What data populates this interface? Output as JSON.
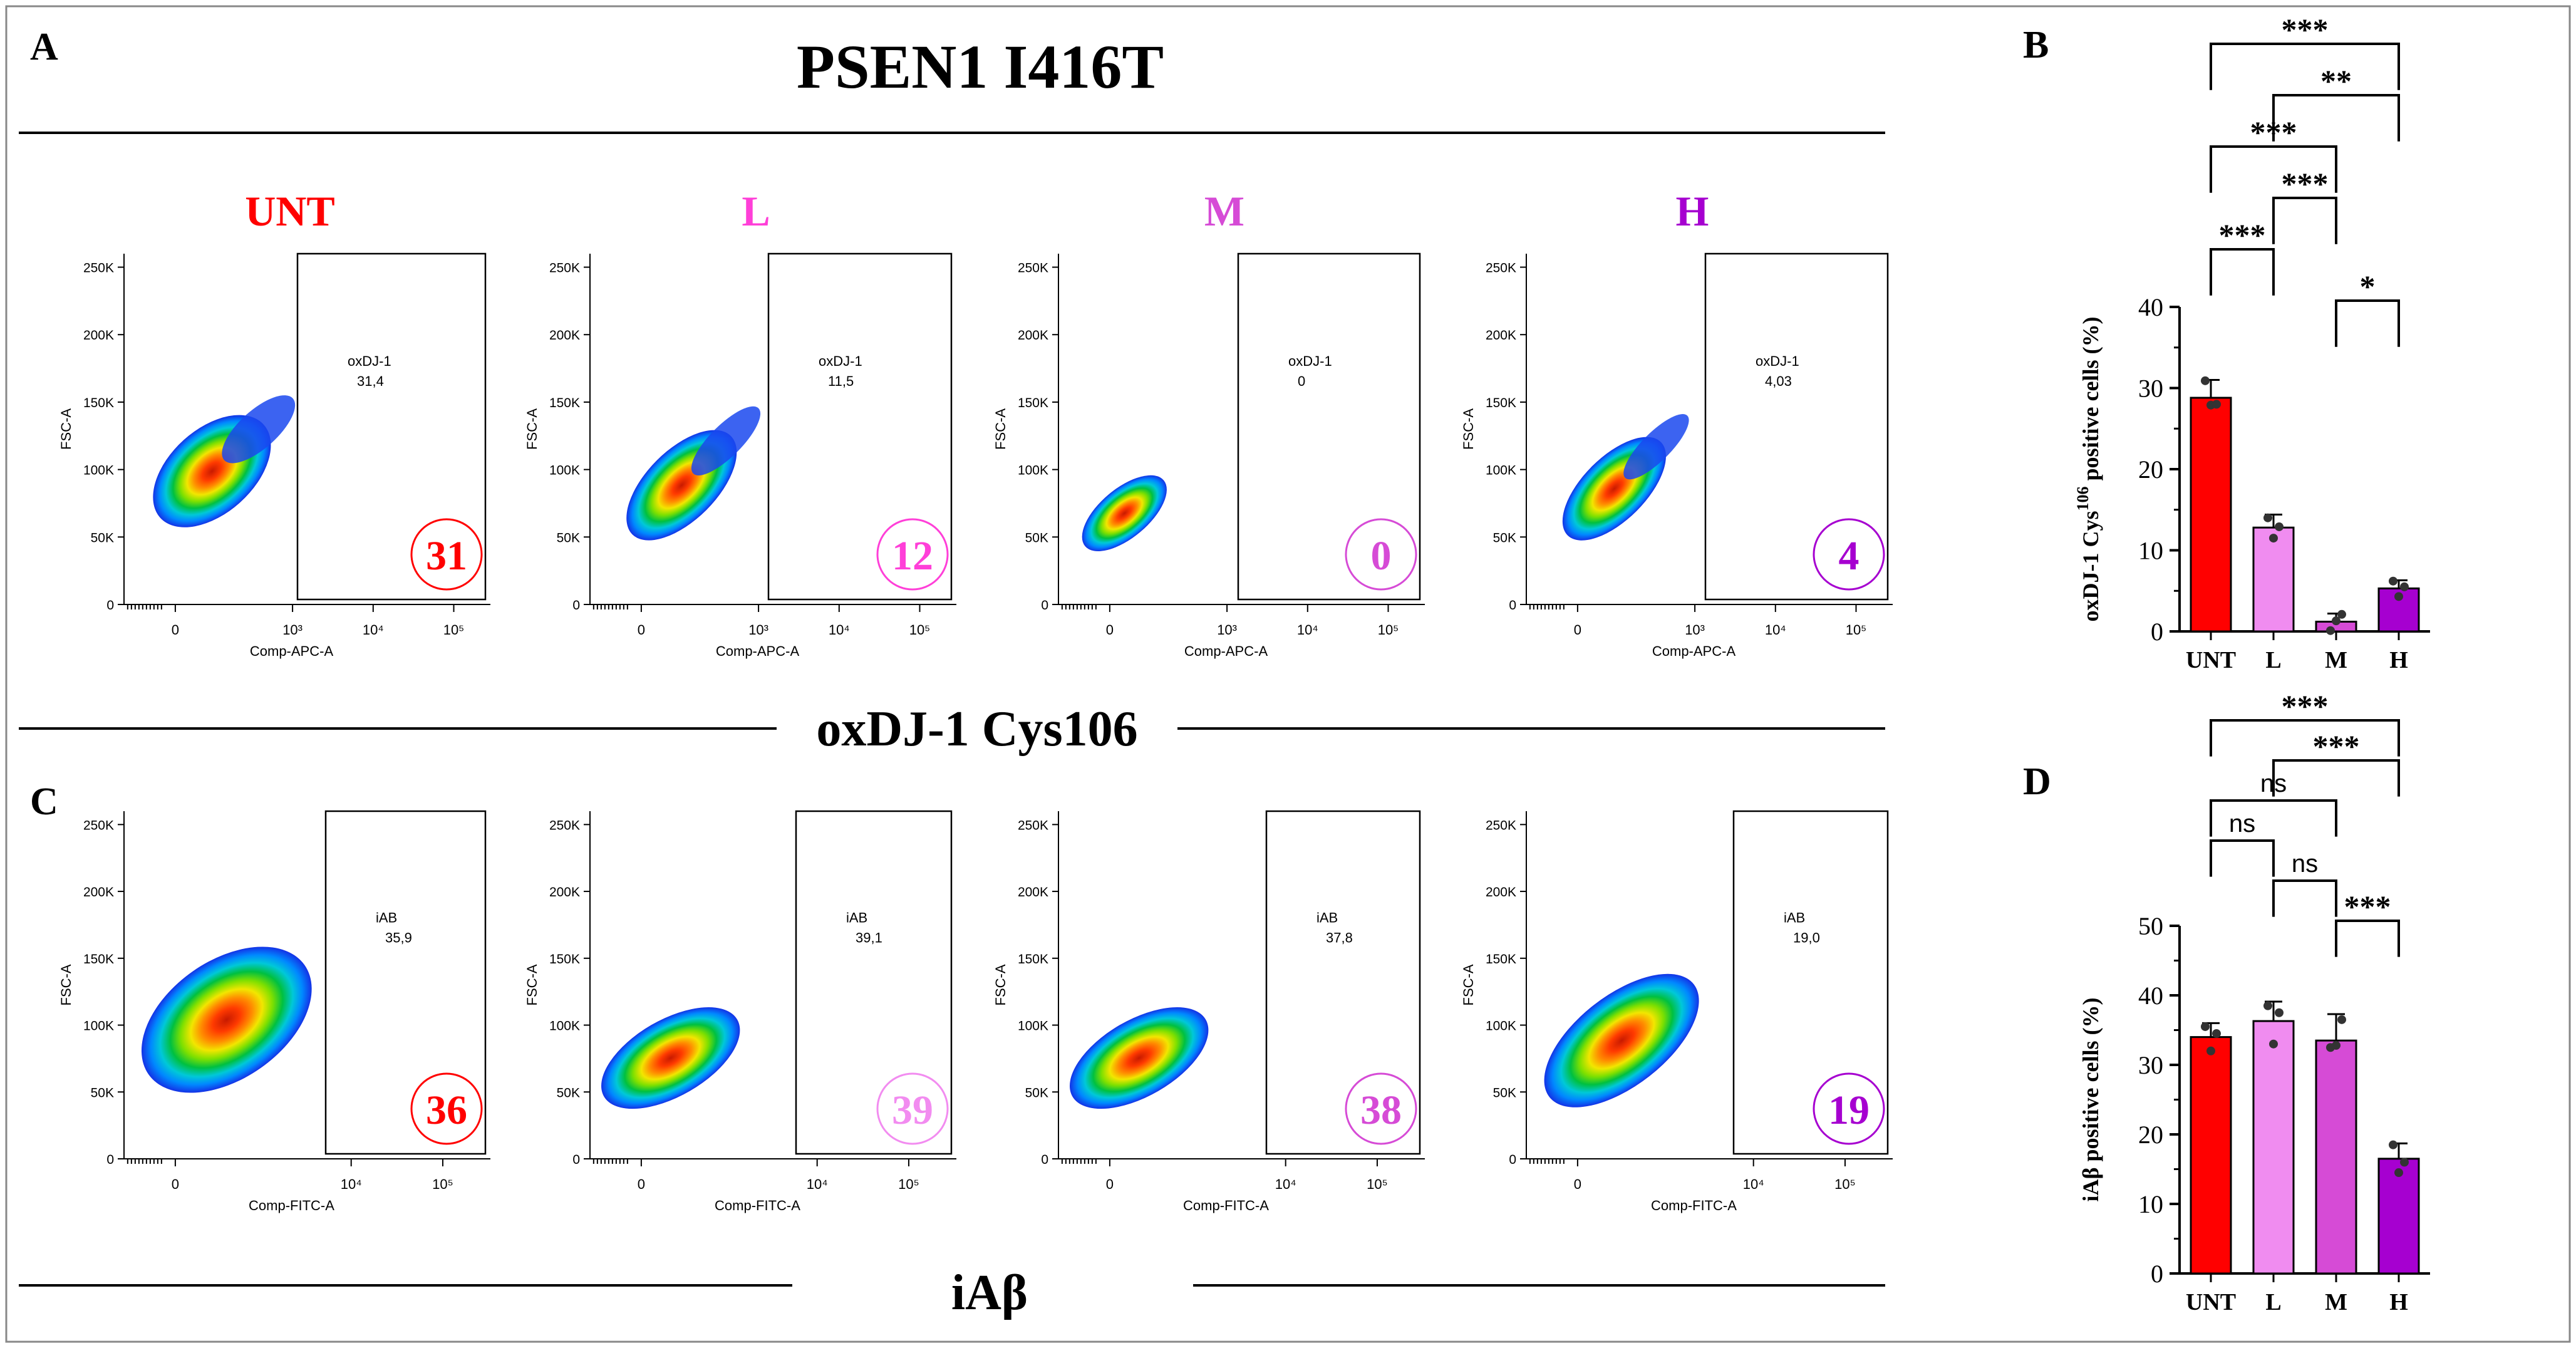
{
  "figure": {
    "title": "PSEN1 I416T",
    "panel_labels": {
      "A": "A",
      "B": "B",
      "C": "C",
      "D": "D"
    },
    "section_labels": {
      "ox": "oxDJ-1 Cys106",
      "iab": "iAβ"
    },
    "group_colors": {
      "UNT": "#ff0000",
      "L": "#ff3fd8",
      "M": "#d64bd6",
      "H": "#a600d0",
      "L_iab": "#f28cf0"
    }
  },
  "flow_common": {
    "y_axis_label": "FSC-A",
    "y_ticks": [
      "0",
      "50K",
      "100K",
      "150K",
      "200K",
      "250K"
    ],
    "x_ticks_apc": [
      "0",
      "10³",
      "10⁴",
      "10⁵"
    ],
    "x_ticks_fitc": [
      "0",
      "10⁴",
      "10⁵"
    ]
  },
  "flow_rows": [
    {
      "id": "ox",
      "x_axis_label": "Comp-APC-A",
      "gate_name": "oxDJ-1",
      "plots": [
        {
          "group": "UNT",
          "header": "UNT",
          "gate_value": "31,4",
          "badge": "31",
          "color": "#ff0000"
        },
        {
          "group": "L",
          "header": "L",
          "gate_value": "11,5",
          "badge": "12",
          "color": "#ff3fd8"
        },
        {
          "group": "M",
          "header": "M",
          "gate_value": "0",
          "badge": "0",
          "color": "#d64bd6"
        },
        {
          "group": "H",
          "header": "H",
          "gate_value": "4,03",
          "badge": "4",
          "color": "#a600d0"
        }
      ]
    },
    {
      "id": "iab",
      "x_axis_label": "Comp-FITC-A",
      "gate_name": "iAB",
      "plots": [
        {
          "group": "UNT",
          "header": "",
          "gate_value": "35,9",
          "badge": "36",
          "color": "#ff0000"
        },
        {
          "group": "L",
          "header": "",
          "gate_value": "39,1",
          "badge": "39",
          "color": "#f28cf0"
        },
        {
          "group": "M",
          "header": "",
          "gate_value": "37,8",
          "badge": "38",
          "color": "#d64bd6"
        },
        {
          "group": "H",
          "header": "",
          "gate_value": "19,0",
          "badge": "19",
          "color": "#a600d0"
        }
      ]
    }
  ],
  "chart_data": [
    {
      "panel": "B",
      "type": "bar",
      "ylabel_main": "oxDJ-1 Cys",
      "ylabel_sup": "106",
      "ylabel_rest": " positive cells (%)",
      "categories": [
        "UNT",
        "L",
        "M",
        "H"
      ],
      "values": [
        28.8,
        12.8,
        1.2,
        5.3
      ],
      "errors": [
        2.2,
        1.6,
        1.0,
        1.0
      ],
      "points": [
        [
          30.9,
          27.9,
          28.0
        ],
        [
          14.0,
          11.5,
          12.9
        ],
        [
          0.1,
          1.3,
          2.1
        ],
        [
          6.2,
          4.3,
          5.5
        ]
      ],
      "colors": [
        "#ff0000",
        "#f08cf0",
        "#d64bd6",
        "#a600d0"
      ],
      "ylim": [
        0,
        40
      ],
      "yticks": [
        0,
        10,
        20,
        30,
        40
      ],
      "comparisons": [
        {
          "a": 0,
          "b": 3,
          "label": "***"
        },
        {
          "a": 1,
          "b": 3,
          "label": "**"
        },
        {
          "a": 0,
          "b": 2,
          "label": "***"
        },
        {
          "a": 1,
          "b": 2,
          "label": "***"
        },
        {
          "a": 0,
          "b": 1,
          "label": "***"
        },
        {
          "a": 2,
          "b": 3,
          "label": "*"
        }
      ]
    },
    {
      "panel": "D",
      "type": "bar",
      "ylabel_main": "iAβ positive cells (%)",
      "ylabel_sup": "",
      "ylabel_rest": "",
      "categories": [
        "UNT",
        "L",
        "M",
        "H"
      ],
      "values": [
        34.0,
        36.3,
        33.5,
        16.5
      ],
      "errors": [
        2.0,
        2.8,
        3.8,
        2.2
      ],
      "points": [
        [
          35.5,
          32.0,
          34.5
        ],
        [
          38.5,
          33.0,
          37.5
        ],
        [
          32.5,
          32.8,
          36.5
        ],
        [
          18.5,
          14.5,
          16.0
        ]
      ],
      "colors": [
        "#ff0000",
        "#f08cf0",
        "#d64bd6",
        "#a600d0"
      ],
      "ylim": [
        0,
        50
      ],
      "yticks": [
        0,
        10,
        20,
        30,
        40,
        50
      ],
      "comparisons": [
        {
          "a": 0,
          "b": 3,
          "label": "***"
        },
        {
          "a": 1,
          "b": 3,
          "label": "***"
        },
        {
          "a": 0,
          "b": 2,
          "label": "ns"
        },
        {
          "a": 0,
          "b": 1,
          "label": "ns"
        },
        {
          "a": 1,
          "b": 2,
          "label": "ns"
        },
        {
          "a": 2,
          "b": 3,
          "label": "***"
        }
      ]
    }
  ]
}
